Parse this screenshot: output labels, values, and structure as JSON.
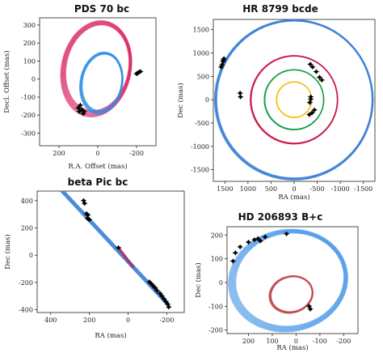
{
  "chart_data": [
    {
      "id": "pds70",
      "type": "scatter",
      "title": "PDS 70 bc",
      "xlabel": "R.A. Offset (mas)",
      "ylabel": "Decl. Offset (mas)",
      "xlim": [
        300,
        -300
      ],
      "ylim": [
        -370,
        340
      ],
      "xticks": [
        200,
        0,
        -200
      ],
      "yticks": [
        300,
        200,
        100,
        0,
        -100,
        -200,
        -300
      ],
      "orbits": [
        {
          "color": "#d81b5e",
          "cx": 5,
          "cy": 60,
          "a": 170,
          "b": 255,
          "rot": 12,
          "spread": 0.06
        },
        {
          "color": "#2f8fe6",
          "cx": -20,
          "cy": -20,
          "a": 105,
          "b": 165,
          "rot": 10,
          "spread": 0.05
        }
      ],
      "points": [
        {
          "x": -212,
          "y": 38
        },
        {
          "x": -205,
          "y": 32
        },
        {
          "x": -220,
          "y": 42
        },
        {
          "x": -200,
          "y": 30
        },
        {
          "x": 90,
          "y": -145
        },
        {
          "x": 82,
          "y": -170
        },
        {
          "x": 95,
          "y": -180
        },
        {
          "x": 75,
          "y": -192
        },
        {
          "x": 100,
          "y": -160
        },
        {
          "x": 70,
          "y": -180
        }
      ]
    },
    {
      "id": "hr8799",
      "type": "scatter",
      "title": "HR 8799 bcde",
      "xlabel": "RA (mas)",
      "ylabel": "Dec (mas)",
      "xlim": [
        1750,
        -1750
      ],
      "ylim": [
        -1750,
        1720
      ],
      "xticks": [
        1500,
        1000,
        500,
        0,
        -500,
        -1000,
        -1500
      ],
      "yticks": [
        1500,
        1000,
        500,
        0,
        -500,
        -1000,
        -1500
      ],
      "orbits": [
        {
          "color": "#3a7fd6",
          "cx": 0,
          "cy": 0,
          "a": 1700,
          "b": 1700,
          "rot": 0,
          "spread": 0.012
        },
        {
          "color": "#cc1a4a",
          "cx": 0,
          "cy": 0,
          "a": 940,
          "b": 940,
          "rot": 0,
          "spread": 0.01
        },
        {
          "color": "#16a04a",
          "cx": 0,
          "cy": 0,
          "a": 640,
          "b": 640,
          "rot": 0,
          "spread": 0.01
        },
        {
          "color": "#f2c10c",
          "cx": 0,
          "cy": 0,
          "a": 380,
          "b": 380,
          "rot": 0,
          "spread": 0.01
        }
      ],
      "points": [
        {
          "x": 1560,
          "y": 750
        },
        {
          "x": 1540,
          "y": 820
        },
        {
          "x": 1520,
          "y": 880
        },
        {
          "x": 1580,
          "y": 700
        },
        {
          "x": 1530,
          "y": 850
        },
        {
          "x": 1160,
          "y": 60
        },
        {
          "x": 1170,
          "y": 140
        },
        {
          "x": -480,
          "y": 600
        },
        {
          "x": -400,
          "y": 700
        },
        {
          "x": -350,
          "y": 760
        },
        {
          "x": -550,
          "y": 480
        },
        {
          "x": -600,
          "y": 420
        },
        {
          "x": -330,
          "y": -320
        },
        {
          "x": -390,
          "y": -280
        },
        {
          "x": -440,
          "y": -220
        },
        {
          "x": -340,
          "y": -60
        },
        {
          "x": -360,
          "y": 10
        },
        {
          "x": -360,
          "y": 60
        }
      ]
    },
    {
      "id": "betapic",
      "type": "scatter",
      "title": "beta Pic bc",
      "xlabel": "RA (mas)",
      "ylabel": "Dec (mas)",
      "xlim": [
        470,
        -290
      ],
      "ylim": [
        -420,
        470
      ],
      "xticks": [
        400,
        200,
        0,
        -200
      ],
      "yticks": [
        400,
        200,
        0,
        -200,
        -400
      ],
      "lines": [
        {
          "color": "#3a7fd6",
          "x1": 340,
          "y1": 470,
          "x2": -200,
          "y2": -350,
          "width": 5
        },
        {
          "color": "#b52b63",
          "x1": 45,
          "y1": 45,
          "x2": -25,
          "y2": -85,
          "width": 3.5
        }
      ],
      "points": [
        {
          "x": 230,
          "y": 400
        },
        {
          "x": 225,
          "y": 380
        },
        {
          "x": 215,
          "y": 305
        },
        {
          "x": 208,
          "y": 295
        },
        {
          "x": 210,
          "y": 270
        },
        {
          "x": 200,
          "y": 260
        },
        {
          "x": 50,
          "y": 55
        },
        {
          "x": -110,
          "y": -195
        },
        {
          "x": -120,
          "y": -210
        },
        {
          "x": -130,
          "y": -225
        },
        {
          "x": -140,
          "y": -240
        },
        {
          "x": -150,
          "y": -260
        },
        {
          "x": -165,
          "y": -280
        },
        {
          "x": -175,
          "y": -300
        },
        {
          "x": -185,
          "y": -320
        },
        {
          "x": -195,
          "y": -340
        },
        {
          "x": -205,
          "y": -360
        },
        {
          "x": -210,
          "y": -380
        }
      ]
    },
    {
      "id": "hd206893",
      "type": "scatter",
      "title": "HD 206893 B+c",
      "xlabel": "RA (mas)",
      "ylabel": "Dec (mas)",
      "xlim": [
        290,
        -260
      ],
      "ylim": [
        -215,
        235
      ],
      "xticks": [
        200,
        100,
        0,
        -100,
        -200
      ],
      "yticks": [
        200,
        100,
        0,
        -100,
        -200
      ],
      "orbits": [
        {
          "color": "#3a8ee6",
          "cx": 30,
          "cy": 10,
          "a": 240,
          "b": 205,
          "rot": -10,
          "spread": 0.05
        },
        {
          "color": "#c4484e",
          "cx": 20,
          "cy": -50,
          "a": 90,
          "b": 75,
          "rot": -15,
          "spread": 0.04
        }
      ],
      "points": [
        {
          "x": 265,
          "y": 90
        },
        {
          "x": 255,
          "y": 125
        },
        {
          "x": 235,
          "y": 150
        },
        {
          "x": 200,
          "y": 170
        },
        {
          "x": 175,
          "y": 180
        },
        {
          "x": 160,
          "y": 185
        },
        {
          "x": 150,
          "y": 175
        },
        {
          "x": 130,
          "y": 192
        },
        {
          "x": 40,
          "y": 205
        },
        {
          "x": -55,
          "y": -100
        },
        {
          "x": -60,
          "y": -112
        }
      ]
    }
  ]
}
